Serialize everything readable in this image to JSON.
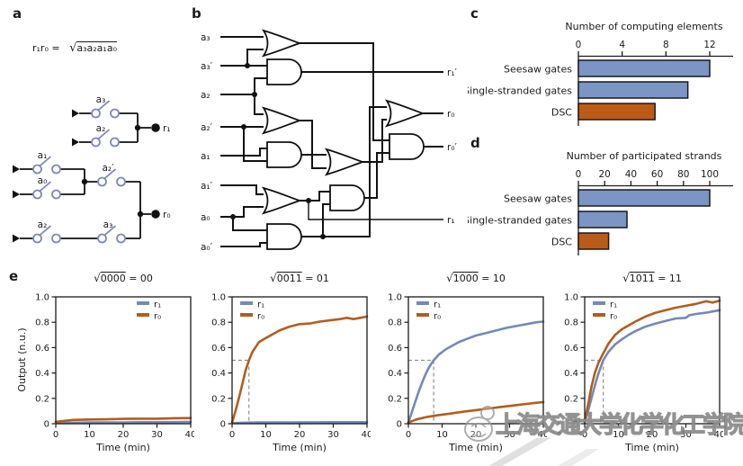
{
  "panels": {
    "a": {
      "label": "a",
      "eq_lhs": "r₁r₀ = ",
      "eq_radical": "√",
      "eq_radicand": "a₃a₂a₁a₀",
      "switch_labels": [
        "a₃",
        "a₂",
        "a₁",
        "a₀",
        "a₂′",
        "a₂",
        "a₃"
      ],
      "outputs": [
        "r₁",
        "r₀"
      ]
    },
    "b": {
      "label": "b",
      "inputs": [
        "a₃",
        "a₃′",
        "a₂",
        "a₂′",
        "a₁",
        "a₁′",
        "a₀",
        "a₀′"
      ],
      "outputs": [
        "r₁′",
        "r₀",
        "r₀′",
        "r₁"
      ]
    },
    "c": {
      "label": "c"
    },
    "d": {
      "label": "d"
    },
    "e": {
      "label": "e"
    }
  },
  "chart_data": [
    {
      "type": "bar",
      "orientation": "horizontal",
      "title": "Number of computing elements",
      "categories": [
        "Seesaw gates",
        "Single-stranded gates",
        "DSC"
      ],
      "values": [
        12,
        10,
        7
      ],
      "ticks": [
        0,
        4,
        8,
        12
      ],
      "xlim": [
        0,
        13
      ],
      "bar_colors": [
        "#7b95c5",
        "#7b95c5",
        "#bc5b17"
      ]
    },
    {
      "type": "bar",
      "orientation": "horizontal",
      "title": "Number of participated strands",
      "categories": [
        "Seesaw gates",
        "Single-stranded gates",
        "DSC"
      ],
      "values": [
        100,
        37,
        23
      ],
      "ticks": [
        0,
        20,
        40,
        60,
        80,
        100
      ],
      "xlim": [
        0,
        108
      ],
      "bar_colors": [
        "#7b95c5",
        "#7b95c5",
        "#bc5b17"
      ]
    },
    {
      "type": "line",
      "title_radical": "√",
      "title_radicand": "0000",
      "title_rhs": " = 00",
      "xlabel": "Time (min)",
      "ylabel": "Output (n.u.)",
      "xlim": [
        0,
        40
      ],
      "ylim": [
        0,
        1
      ],
      "xticks": [
        0,
        10,
        20,
        30,
        40
      ],
      "yticks": [
        0,
        0.2,
        0.4,
        0.6,
        0.8,
        1
      ],
      "legend_pos": "right",
      "guide": null,
      "series": [
        {
          "name": "r₁",
          "color": "#7489b7",
          "t": [
            0,
            5,
            10,
            15,
            20,
            25,
            30,
            35,
            40
          ],
          "v": [
            0.005,
            0.008,
            0.01,
            0.01,
            0.01,
            0.012,
            0.012,
            0.013,
            0.015
          ]
        },
        {
          "name": "r₀",
          "color": "#b05e20",
          "t": [
            0,
            5,
            10,
            15,
            20,
            25,
            30,
            35,
            40
          ],
          "v": [
            0.015,
            0.03,
            0.033,
            0.035,
            0.038,
            0.04,
            0.04,
            0.043,
            0.045
          ]
        }
      ]
    },
    {
      "type": "line",
      "title_radical": "√",
      "title_radicand": "0011",
      "title_rhs": " = 01",
      "xlabel": "Time (min)",
      "ylabel": null,
      "xlim": [
        0,
        40
      ],
      "ylim": [
        0,
        1
      ],
      "xticks": [
        0,
        10,
        20,
        30,
        40
      ],
      "yticks": [
        0,
        0.2,
        0.4,
        0.6,
        0.8,
        1
      ],
      "legend_pos": "left",
      "guide": {
        "x": 5,
        "y": 0.5
      },
      "series": [
        {
          "name": "r₁",
          "color": "#7489b7",
          "t": [
            0,
            1,
            2,
            3,
            4,
            5,
            6,
            8,
            10,
            12,
            14,
            17,
            20,
            23,
            26,
            29,
            32,
            34,
            36,
            38,
            40
          ],
          "v": [
            0.005,
            0.006,
            0.007,
            0.008,
            0.008,
            0.009,
            0.009,
            0.01,
            0.01,
            0.01,
            0.01,
            0.01,
            0.011,
            0.011,
            0.011,
            0.012,
            0.012,
            0.012,
            0.012,
            0.012,
            0.012
          ]
        },
        {
          "name": "r₀",
          "color": "#b05e20",
          "t": [
            0,
            1,
            2,
            3,
            4,
            5,
            6,
            8,
            10,
            12,
            14,
            17,
            20,
            23,
            26,
            29,
            32,
            34,
            36,
            38,
            40
          ],
          "v": [
            0.01,
            0.1,
            0.2,
            0.31,
            0.42,
            0.5,
            0.565,
            0.645,
            0.675,
            0.705,
            0.735,
            0.765,
            0.785,
            0.79,
            0.805,
            0.815,
            0.825,
            0.835,
            0.825,
            0.835,
            0.845
          ]
        }
      ]
    },
    {
      "type": "line",
      "title_radical": "√",
      "title_radicand": "1000",
      "title_rhs": " = 10",
      "xlabel": "Time (min)",
      "ylabel": null,
      "xlim": [
        0,
        40
      ],
      "ylim": [
        0,
        1
      ],
      "xticks": [
        0,
        10,
        20,
        30,
        40
      ],
      "yticks": [
        0,
        0.2,
        0.4,
        0.6,
        0.8,
        1
      ],
      "legend_pos": "left",
      "guide": {
        "x": 7.5,
        "y": 0.5
      },
      "series": [
        {
          "name": "r₁",
          "color": "#7489b7",
          "t": [
            0,
            1,
            2,
            3,
            4,
            5,
            6,
            7.5,
            9,
            11,
            13,
            15,
            17,
            20,
            23,
            26,
            29,
            32,
            35,
            38,
            40
          ],
          "v": [
            0.01,
            0.09,
            0.17,
            0.25,
            0.32,
            0.385,
            0.44,
            0.5,
            0.545,
            0.585,
            0.615,
            0.645,
            0.665,
            0.695,
            0.715,
            0.735,
            0.755,
            0.77,
            0.785,
            0.8,
            0.805
          ]
        },
        {
          "name": "r₀",
          "color": "#b05e20",
          "t": [
            0,
            1,
            2,
            3,
            4,
            5,
            6,
            7.5,
            9,
            11,
            13,
            15,
            17,
            20,
            23,
            26,
            29,
            32,
            35,
            38,
            40
          ],
          "v": [
            0.01,
            0.02,
            0.03,
            0.038,
            0.044,
            0.05,
            0.055,
            0.062,
            0.068,
            0.075,
            0.082,
            0.09,
            0.097,
            0.107,
            0.117,
            0.127,
            0.137,
            0.147,
            0.156,
            0.165,
            0.17
          ]
        }
      ]
    },
    {
      "type": "line",
      "title_radical": "√",
      "title_radicand": "1011",
      "title_rhs": " = 11",
      "xlabel": "Time (min)",
      "ylabel": null,
      "xlim": [
        0,
        40
      ],
      "ylim": [
        0,
        1
      ],
      "xticks": [
        0,
        10,
        20,
        30,
        40
      ],
      "yticks": [
        0,
        0.2,
        0.4,
        0.6,
        0.8,
        1
      ],
      "legend_pos": "left",
      "guide": {
        "x": 5.5,
        "y": 0.5
      },
      "series": [
        {
          "name": "r₁",
          "color": "#7489b7",
          "t": [
            0,
            1,
            2,
            3,
            4,
            5.5,
            7,
            9,
            11,
            13,
            15,
            18,
            21,
            24,
            27,
            30,
            31,
            33,
            36,
            38,
            40
          ],
          "v": [
            0.01,
            0.1,
            0.2,
            0.3,
            0.39,
            0.5,
            0.565,
            0.625,
            0.665,
            0.7,
            0.73,
            0.765,
            0.79,
            0.81,
            0.83,
            0.835,
            0.855,
            0.865,
            0.875,
            0.885,
            0.895
          ]
        },
        {
          "name": "r₀",
          "color": "#b05e20",
          "t": [
            0,
            1,
            2,
            3,
            4,
            5.5,
            7,
            9,
            11,
            13,
            15,
            18,
            21,
            24,
            27,
            30,
            31,
            33,
            36,
            38,
            40
          ],
          "v": [
            0.02,
            0.15,
            0.29,
            0.4,
            0.475,
            0.555,
            0.63,
            0.7,
            0.745,
            0.775,
            0.805,
            0.845,
            0.875,
            0.895,
            0.915,
            0.93,
            0.935,
            0.945,
            0.965,
            0.955,
            0.97
          ]
        }
      ]
    }
  ],
  "watermark": {
    "text": "上海交通大学化学化工学院"
  },
  "colors": {
    "axis": "#1a1a1a",
    "wire": "#111111",
    "switch_blue": "#7e88b8",
    "bar_blue": "#7b95c5",
    "bar_orange": "#bc5b17",
    "line_blue": "#7489b7",
    "line_orange": "#b05e20",
    "guide": "#909090",
    "watermark_gray": "#8f8f8f",
    "ribbon_gray": "#d0d0d0"
  }
}
